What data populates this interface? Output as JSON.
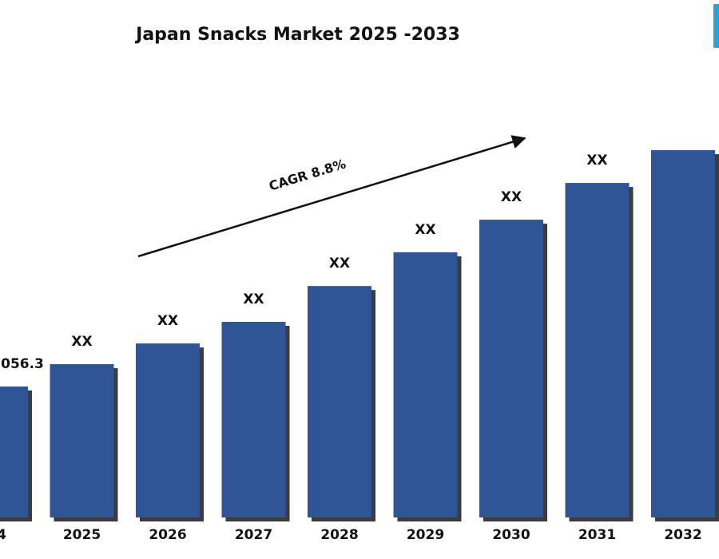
{
  "chart_data": {
    "type": "bar",
    "title": "Japan Snacks Market 2025 -2033",
    "annotation": "CAGR 8.8%",
    "categories": [
      "4",
      "2025",
      "2026",
      "2027",
      "2028",
      "2029",
      "2030",
      "2031",
      "2032"
    ],
    "values": [
      56.3,
      65.9,
      74.8,
      84.1,
      99.5,
      114,
      128,
      143.8,
      157.9
    ],
    "value_labels": [
      "056.3",
      "XX",
      "XX",
      "XX",
      "XX",
      "XX",
      "XX",
      "XX",
      null
    ],
    "color": "#2f5597"
  }
}
